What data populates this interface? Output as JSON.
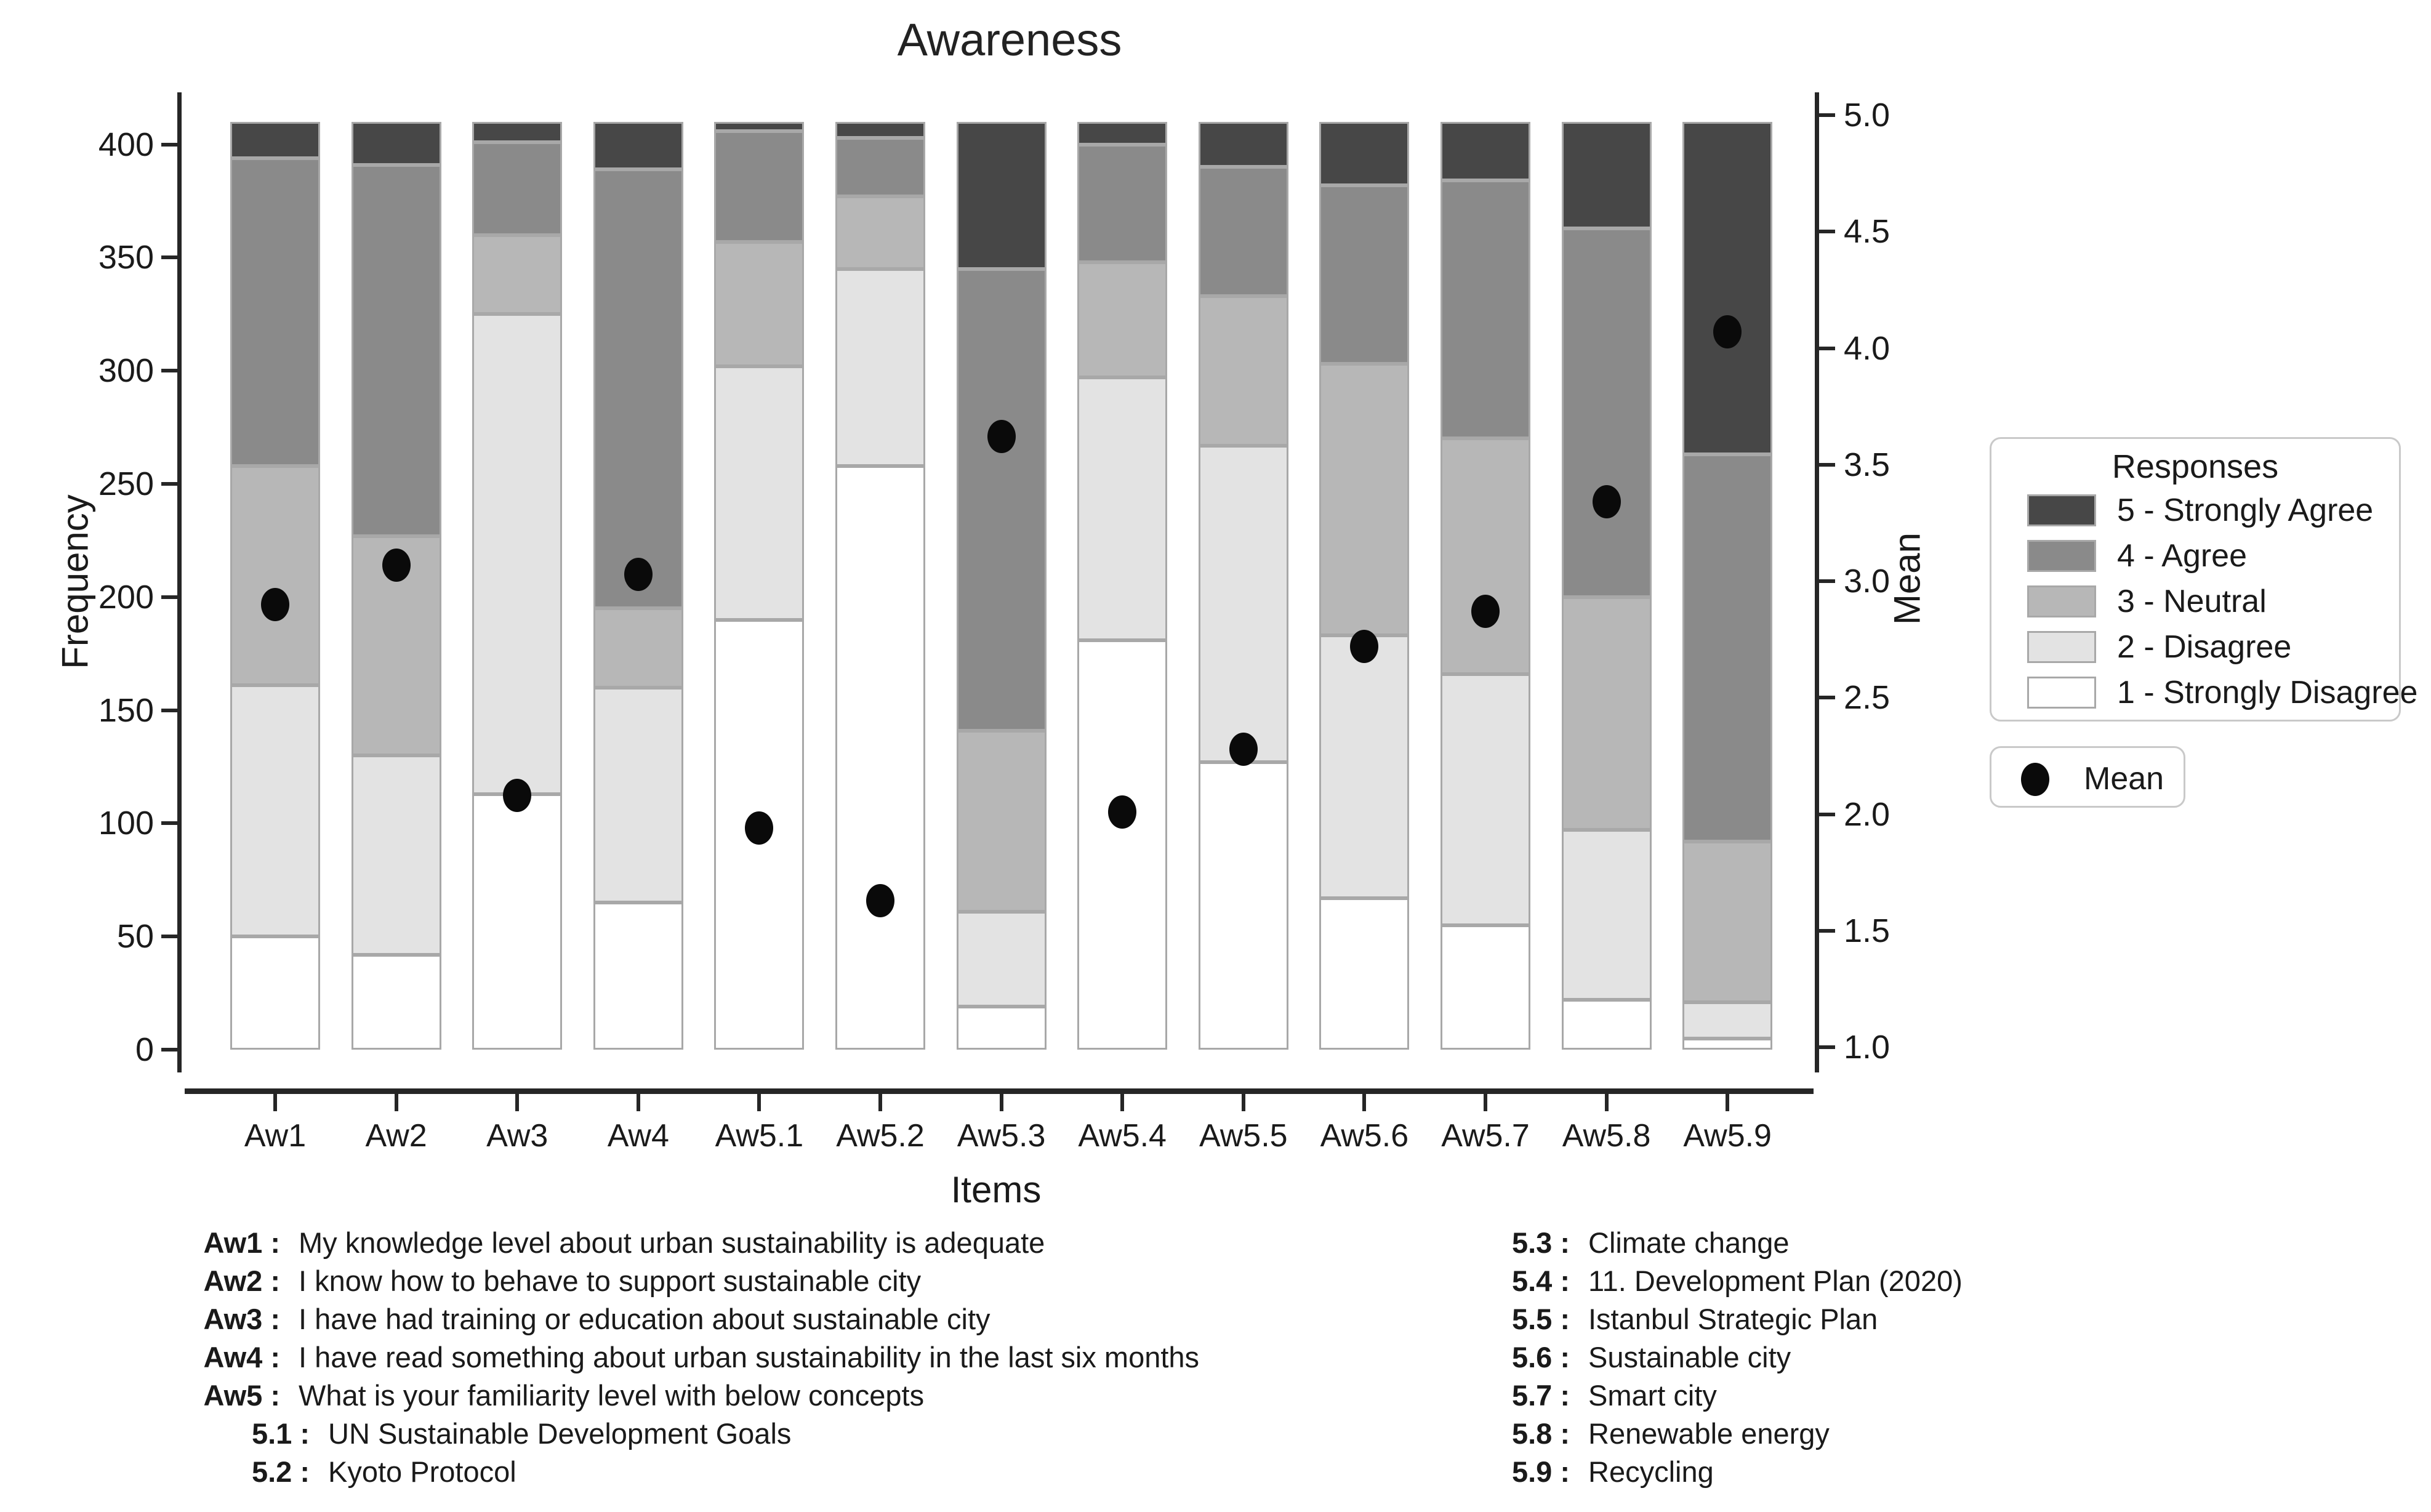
{
  "title": "Awareness",
  "axes": {
    "x_title": "Items",
    "y_left_title": "Frequency",
    "y_right_title": "Mean",
    "y_left_ticks": [
      0,
      50,
      100,
      150,
      200,
      250,
      300,
      350,
      400
    ],
    "y_right_ticks": [
      1.0,
      1.5,
      2.0,
      2.5,
      3.0,
      3.5,
      4.0,
      4.5,
      5.0
    ]
  },
  "legend": {
    "title": "Responses",
    "items": [
      {
        "label": "5 - Strongly Agree",
        "color": "#474747"
      },
      {
        "label": "4 - Agree",
        "color": "#8a8a8a"
      },
      {
        "label": "3 - Neutral",
        "color": "#b7b7b7"
      },
      {
        "label": "2 - Disagree",
        "color": "#e3e3e3"
      },
      {
        "label": "1 - Strongly Disagree",
        "color": "#ffffff"
      }
    ],
    "mean_item_label": "Mean",
    "mean_dot_color": "#0a0a0a"
  },
  "chart_data": {
    "type": "bar",
    "stacked": true,
    "title": "Awareness",
    "xlabel": "Items",
    "ylabel_left": "Frequency",
    "ylabel_right": "Mean",
    "ylim_left": [
      0,
      410
    ],
    "ylim_right": [
      1.0,
      5.0
    ],
    "total_per_bar": 410,
    "grid": false,
    "legend_position": "right",
    "categories": [
      "Aw1",
      "Aw2",
      "Aw3",
      "Aw4",
      "Aw5.1",
      "Aw5.2",
      "Aw5.3",
      "Aw5.4",
      "Aw5.5",
      "Aw5.6",
      "Aw5.7",
      "Aw5.8",
      "Aw5.9"
    ],
    "series": [
      {
        "name": "1 - Strongly Disagree",
        "color": "#ffffff",
        "values": [
          50,
          42,
          113,
          65,
          190,
          258,
          19,
          181,
          127,
          67,
          55,
          22,
          5
        ]
      },
      {
        "name": "2 - Disagree",
        "color": "#e3e3e3",
        "values": [
          111,
          88,
          212,
          95,
          112,
          87,
          42,
          116,
          140,
          116,
          111,
          75,
          16
        ]
      },
      {
        "name": "3 - Neutral",
        "color": "#b7b7b7",
        "values": [
          97,
          97,
          35,
          35,
          55,
          32,
          80,
          51,
          66,
          120,
          104,
          103,
          71
        ]
      },
      {
        "name": "4 - Agree",
        "color": "#8a8a8a",
        "values": [
          136,
          164,
          41,
          194,
          49,
          26,
          204,
          52,
          57,
          79,
          114,
          163,
          171
        ]
      },
      {
        "name": "5 - Strongly Agree",
        "color": "#474747",
        "values": [
          16,
          19,
          9,
          21,
          4,
          7,
          65,
          10,
          20,
          28,
          26,
          47,
          147
        ]
      }
    ],
    "means": [
      2.9,
      3.07,
      2.08,
      3.03,
      1.94,
      1.63,
      3.62,
      2.01,
      2.28,
      2.72,
      2.87,
      3.34,
      4.07
    ]
  },
  "definitions": {
    "left": [
      {
        "key": "Aw1 :",
        "text": "My knowledge level about urban sustainability is adequate",
        "indent": false
      },
      {
        "key": "Aw2 :",
        "text": "I know how to behave to support sustainable city",
        "indent": false
      },
      {
        "key": "Aw3 :",
        "text": "I have had training or education about sustainable city",
        "indent": false
      },
      {
        "key": "Aw4 :",
        "text": "I have read something about urban sustainability in the last six months",
        "indent": false
      },
      {
        "key": "Aw5 :",
        "text": "What is your familiarity level with below concepts",
        "indent": false
      },
      {
        "key": "5.1 :",
        "text": "UN Sustainable Development Goals",
        "indent": true
      },
      {
        "key": "5.2 :",
        "text": "Kyoto Protocol",
        "indent": true
      }
    ],
    "right": [
      {
        "key": "5.3 :",
        "text": "Climate change",
        "indent": false
      },
      {
        "key": "5.4 :",
        "text": "11. Development Plan (2020)",
        "indent": false
      },
      {
        "key": "5.5 :",
        "text": "Istanbul Strategic Plan",
        "indent": false
      },
      {
        "key": "5.6 :",
        "text": "Sustainable city",
        "indent": false
      },
      {
        "key": "5.7 :",
        "text": "Smart city",
        "indent": false
      },
      {
        "key": "5.8 :",
        "text": "Renewable energy",
        "indent": false
      },
      {
        "key": "5.9 :",
        "text": "Recycling",
        "indent": false
      }
    ]
  }
}
